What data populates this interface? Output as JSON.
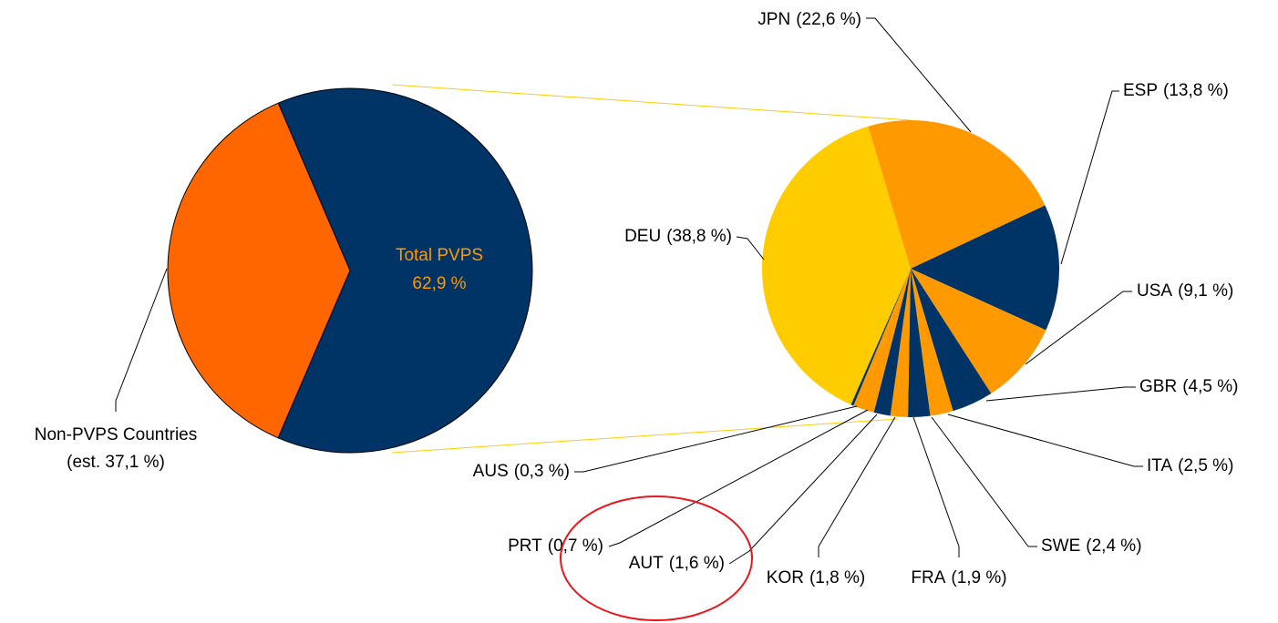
{
  "chart_data": [
    {
      "type": "pie",
      "categories": [
        "Total PVPS",
        "Non-PVPS Countries"
      ],
      "values": [
        62.9,
        37.1
      ],
      "value_labels": [
        "62,9 %",
        "(est. 37,1 %)"
      ],
      "colors": [
        "#003366",
        "#ff6600"
      ]
    },
    {
      "type": "pie",
      "categories": [
        "JPN",
        "ESP",
        "USA",
        "GBR",
        "ITA",
        "SWE",
        "FRA",
        "KOR",
        "AUT",
        "PRT",
        "AUS",
        "DEU"
      ],
      "values": [
        22.6,
        13.8,
        9.1,
        4.5,
        2.5,
        2.4,
        1.9,
        1.8,
        1.6,
        0.7,
        0.3,
        38.8
      ],
      "value_labels": [
        "(22,6 %)",
        "(13,8 %)",
        "(9,1 %)",
        "(4,5 %)",
        "(2,5 %)",
        "(2,4 %)",
        "(1,9 %)",
        "(1,8 %)",
        "(1,6 %)",
        "(0,7 %)",
        "(0,3 %)",
        "(38,8 %)"
      ],
      "colors": [
        "#ff9900",
        "#003366",
        "#ff9900",
        "#003366",
        "#ff9900",
        "#003366",
        "#ff9900",
        "#003366",
        "#ff9900",
        "#ff9900",
        "#003366",
        "#ffcc00"
      ]
    }
  ]
}
